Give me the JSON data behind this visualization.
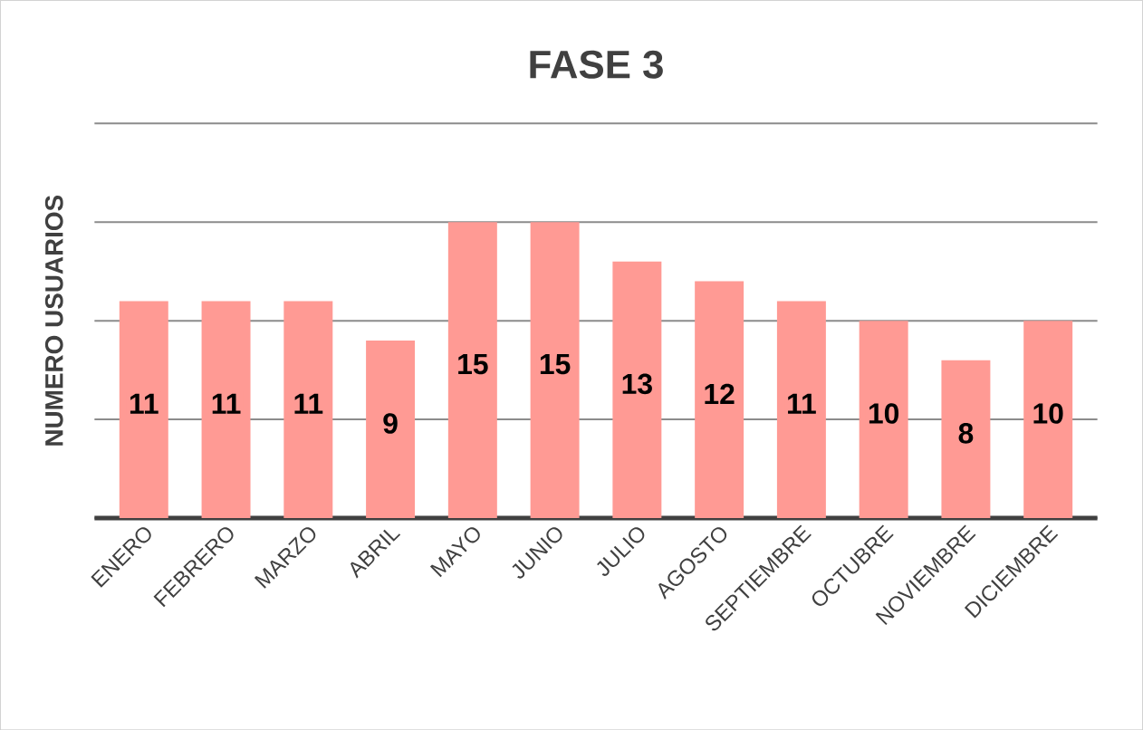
{
  "chart_data": {
    "type": "bar",
    "title": "FASE 3",
    "ylabel": "NUMERO USUARIOS",
    "categories": [
      "ENERO",
      "FEBRERO",
      "MARZO",
      "ABRIL",
      "MAYO",
      "JUNIO",
      "JULIO",
      "AGOSTO",
      "SEPTIEMBRE",
      "OCTUBRE",
      "NOVIEMBRE",
      "DICIEMBRE"
    ],
    "values": [
      11,
      11,
      11,
      9,
      15,
      15,
      13,
      12,
      11,
      10,
      8,
      10
    ],
    "color": "#ff9a94",
    "ylim": [
      0,
      20
    ],
    "yticks": [
      {
        "value": 0,
        "label": null
      },
      {
        "value": 5,
        "label": null
      },
      {
        "value": 10,
        "label": null
      },
      {
        "value": 15,
        "label": null
      },
      {
        "value": 20,
        "label": null
      }
    ],
    "tick_labels": "x",
    "grid": "y",
    "data_labels": true
  }
}
